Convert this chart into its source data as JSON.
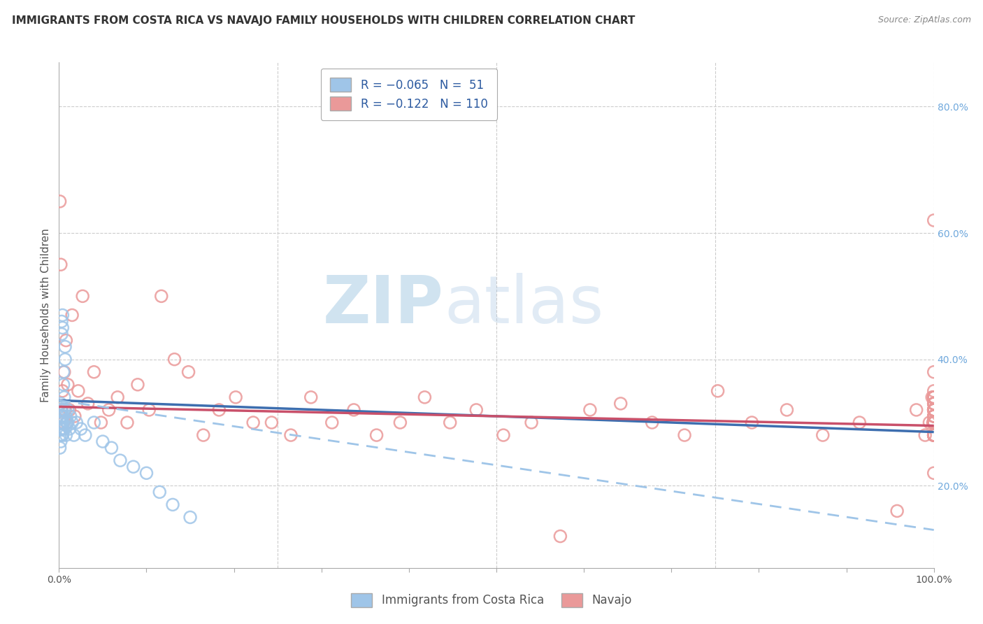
{
  "title": "IMMIGRANTS FROM COSTA RICA VS NAVAJO FAMILY HOUSEHOLDS WITH CHILDREN CORRELATION CHART",
  "source": "Source: ZipAtlas.com",
  "ylabel": "Family Households with Children",
  "watermark_zip": "ZIP",
  "watermark_atlas": "atlas",
  "xmin": 0.0,
  "xmax": 1.0,
  "ymin": 0.07,
  "ymax": 0.87,
  "yticks": [
    0.2,
    0.4,
    0.6,
    0.8
  ],
  "ytick_labels_right": [
    "20.0%",
    "40.0%",
    "60.0%",
    "80.0%"
  ],
  "xtick_labels_show": [
    "0.0%",
    "100.0%"
  ],
  "blue_R": -0.065,
  "blue_N": 51,
  "pink_R": -0.122,
  "pink_N": 110,
  "blue_color": "#9fc5e8",
  "pink_color": "#ea9999",
  "blue_marker_edge": "#6fa8dc",
  "pink_marker_edge": "#e06666",
  "blue_line_color": "#3d6eaf",
  "pink_line_color": "#c9506a",
  "dashed_line_color": "#9fc5e8",
  "background_color": "#ffffff",
  "grid_color": "#cccccc",
  "title_fontsize": 11,
  "axis_fontsize": 10,
  "legend_fontsize": 12,
  "right_tick_color": "#6fa8dc",
  "legend_R_eq_color": "#000000",
  "legend_val_color": "#2c5aa0",
  "blue_scatter_x": [
    0.001,
    0.001,
    0.001,
    0.002,
    0.002,
    0.002,
    0.002,
    0.002,
    0.003,
    0.003,
    0.003,
    0.003,
    0.003,
    0.003,
    0.003,
    0.004,
    0.004,
    0.004,
    0.004,
    0.004,
    0.004,
    0.005,
    0.005,
    0.005,
    0.005,
    0.006,
    0.006,
    0.007,
    0.007,
    0.007,
    0.008,
    0.008,
    0.009,
    0.01,
    0.01,
    0.012,
    0.013,
    0.015,
    0.017,
    0.02,
    0.025,
    0.03,
    0.04,
    0.05,
    0.06,
    0.07,
    0.085,
    0.1,
    0.115,
    0.13,
    0.15
  ],
  "blue_scatter_y": [
    0.3,
    0.28,
    0.26,
    0.32,
    0.31,
    0.29,
    0.27,
    0.33,
    0.44,
    0.46,
    0.3,
    0.28,
    0.31,
    0.29,
    0.32,
    0.45,
    0.47,
    0.29,
    0.31,
    0.3,
    0.28,
    0.38,
    0.36,
    0.31,
    0.29,
    0.34,
    0.32,
    0.42,
    0.4,
    0.29,
    0.31,
    0.28,
    0.3,
    0.32,
    0.3,
    0.29,
    0.31,
    0.3,
    0.28,
    0.3,
    0.29,
    0.28,
    0.3,
    0.27,
    0.26,
    0.24,
    0.23,
    0.22,
    0.19,
    0.17,
    0.15
  ],
  "pink_scatter_x": [
    0.001,
    0.002,
    0.003,
    0.004,
    0.005,
    0.006,
    0.007,
    0.008,
    0.009,
    0.01,
    0.012,
    0.015,
    0.018,
    0.022,
    0.027,
    0.033,
    0.04,
    0.048,
    0.057,
    0.067,
    0.078,
    0.09,
    0.103,
    0.117,
    0.132,
    0.148,
    0.165,
    0.183,
    0.202,
    0.222,
    0.243,
    0.265,
    0.288,
    0.312,
    0.337,
    0.363,
    0.39,
    0.418,
    0.447,
    0.477,
    0.508,
    0.54,
    0.573,
    0.607,
    0.642,
    0.678,
    0.715,
    0.753,
    0.792,
    0.832,
    0.873,
    0.915,
    0.958,
    0.98,
    0.99,
    0.995,
    0.998,
    0.999,
    1.0,
    1.0,
    1.0,
    1.0,
    1.0,
    1.0,
    1.0,
    1.0,
    1.0,
    1.0,
    1.0,
    1.0,
    1.0,
    1.0,
    1.0,
    1.0,
    1.0,
    1.0,
    1.0,
    1.0,
    1.0,
    1.0,
    1.0,
    1.0,
    1.0,
    1.0,
    1.0,
    1.0,
    1.0,
    1.0,
    1.0,
    1.0,
    1.0,
    1.0,
    1.0,
    1.0,
    1.0,
    1.0,
    1.0,
    1.0,
    1.0,
    1.0,
    1.0,
    1.0,
    1.0,
    1.0,
    1.0,
    1.0,
    1.0,
    1.0,
    1.0,
    1.0
  ],
  "pink_scatter_y": [
    0.65,
    0.55,
    0.32,
    0.35,
    0.3,
    0.38,
    0.32,
    0.43,
    0.3,
    0.36,
    0.32,
    0.47,
    0.31,
    0.35,
    0.5,
    0.33,
    0.38,
    0.3,
    0.32,
    0.34,
    0.3,
    0.36,
    0.32,
    0.5,
    0.4,
    0.38,
    0.28,
    0.32,
    0.34,
    0.3,
    0.3,
    0.28,
    0.34,
    0.3,
    0.32,
    0.28,
    0.3,
    0.34,
    0.3,
    0.32,
    0.28,
    0.3,
    0.12,
    0.32,
    0.33,
    0.3,
    0.28,
    0.35,
    0.3,
    0.32,
    0.28,
    0.3,
    0.16,
    0.32,
    0.28,
    0.3,
    0.34,
    0.3,
    0.32,
    0.28,
    0.22,
    0.32,
    0.62,
    0.3,
    0.28,
    0.32,
    0.34,
    0.28,
    0.3,
    0.32,
    0.38,
    0.3,
    0.34,
    0.3,
    0.32,
    0.28,
    0.3,
    0.33,
    0.32,
    0.3,
    0.28,
    0.32,
    0.3,
    0.34,
    0.31,
    0.33,
    0.28,
    0.3,
    0.32,
    0.34,
    0.31,
    0.3,
    0.28,
    0.35,
    0.32,
    0.3,
    0.34,
    0.31,
    0.28,
    0.33,
    0.3,
    0.32,
    0.34,
    0.28,
    0.31,
    0.33,
    0.3,
    0.28,
    0.32,
    0.34
  ],
  "blue_trend": [
    0.335,
    0.285
  ],
  "pink_trend": [
    0.325,
    0.295
  ],
  "dash_trend": [
    0.335,
    0.13
  ]
}
